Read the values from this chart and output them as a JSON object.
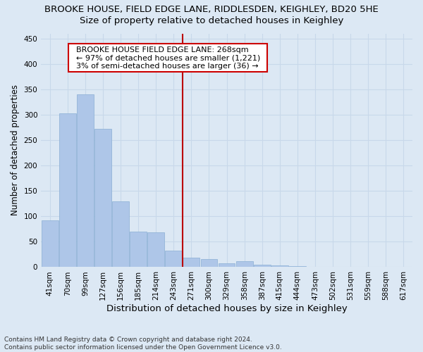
{
  "title1": "BROOKE HOUSE, FIELD EDGE LANE, RIDDLESDEN, KEIGHLEY, BD20 5HE",
  "title2": "Size of property relative to detached houses in Keighley",
  "xlabel": "Distribution of detached houses by size in Keighley",
  "ylabel": "Number of detached properties",
  "categories": [
    "41sqm",
    "70sqm",
    "99sqm",
    "127sqm",
    "156sqm",
    "185sqm",
    "214sqm",
    "243sqm",
    "271sqm",
    "300sqm",
    "329sqm",
    "358sqm",
    "387sqm",
    "415sqm",
    "444sqm",
    "473sqm",
    "502sqm",
    "531sqm",
    "559sqm",
    "588sqm",
    "617sqm"
  ],
  "values": [
    92,
    303,
    340,
    272,
    130,
    70,
    68,
    33,
    18,
    16,
    7,
    12,
    5,
    4,
    2,
    1,
    0,
    1,
    0,
    1,
    1
  ],
  "bar_color": "#aec6e8",
  "bar_edge_color": "#8aafd4",
  "grid_color": "#c8d8ea",
  "background_color": "#dce8f4",
  "vline_x_index": 8,
  "vline_color": "#bb0000",
  "annotation_text": "  BROOKE HOUSE FIELD EDGE LANE: 268sqm  \n  ← 97% of detached houses are smaller (1,221)  \n  3% of semi-detached houses are larger (36) →  ",
  "annotation_box_color": "#cc0000",
  "ylim": [
    0,
    460
  ],
  "yticks": [
    0,
    50,
    100,
    150,
    200,
    250,
    300,
    350,
    400,
    450
  ],
  "footnote": "Contains HM Land Registry data © Crown copyright and database right 2024.\nContains public sector information licensed under the Open Government Licence v3.0.",
  "title1_fontsize": 9.5,
  "title2_fontsize": 9.5,
  "xlabel_fontsize": 9.5,
  "ylabel_fontsize": 8.5,
  "annotation_fontsize": 8,
  "tick_fontsize": 7.5,
  "footnote_fontsize": 6.5
}
